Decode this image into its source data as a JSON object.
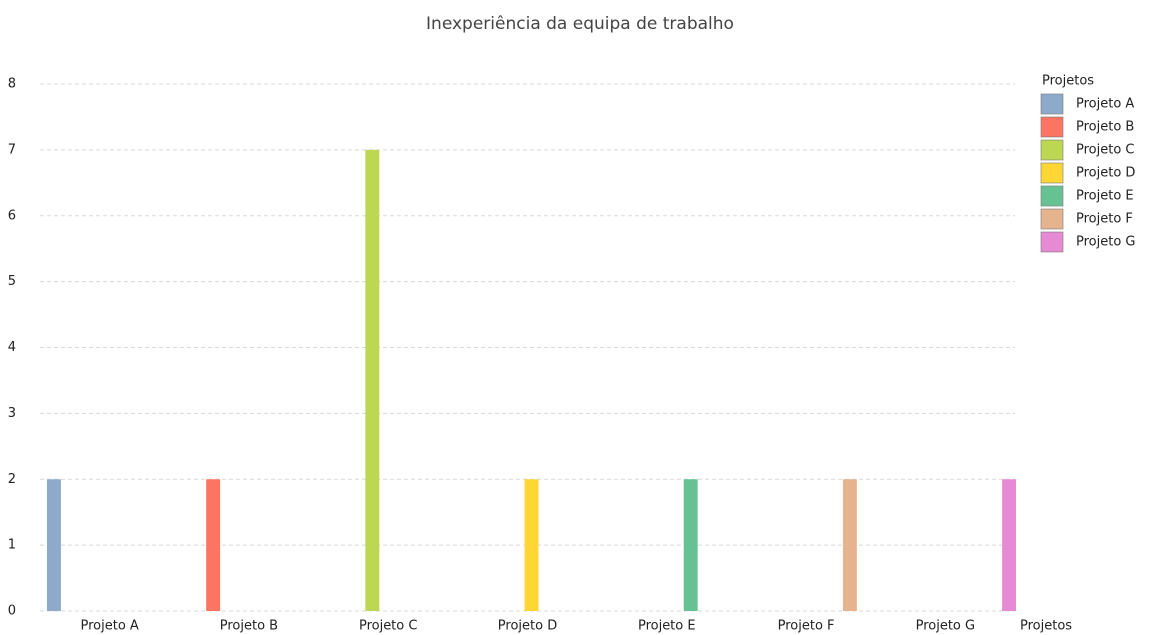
{
  "chart_data": {
    "type": "bar",
    "title": "Inexperiência da equipa de trabalho",
    "x_label": "Projetos",
    "legend_title": "Projetos",
    "categories": [
      "Projeto A",
      "Projeto B",
      "Projeto C",
      "Projeto D",
      "Projeto E",
      "Projeto F",
      "Projeto G"
    ],
    "series": [
      {
        "name": "Projeto A",
        "color": "#8eaacb",
        "values": [
          2,
          null,
          null,
          null,
          null,
          null,
          null
        ]
      },
      {
        "name": "Projeto B",
        "color": "#fc7462",
        "values": [
          null,
          2,
          null,
          null,
          null,
          null,
          null
        ]
      },
      {
        "name": "Projeto C",
        "color": "#bcd752",
        "values": [
          null,
          null,
          7,
          null,
          null,
          null,
          null
        ]
      },
      {
        "name": "Projeto D",
        "color": "#ffd633",
        "values": [
          null,
          null,
          null,
          2,
          null,
          null,
          null
        ]
      },
      {
        "name": "Projeto E",
        "color": "#66c292",
        "values": [
          null,
          null,
          null,
          null,
          2,
          null,
          null
        ]
      },
      {
        "name": "Projeto F",
        "color": "#e5b48e",
        "values": [
          null,
          null,
          null,
          null,
          null,
          2,
          null
        ]
      },
      {
        "name": "Projeto G",
        "color": "#e68ad4",
        "values": [
          null,
          null,
          null,
          null,
          null,
          null,
          2
        ]
      }
    ],
    "ylim": [
      0,
      8
    ],
    "yticks": [
      0,
      1,
      2,
      3,
      4,
      5,
      6,
      7,
      8
    ],
    "grid": true,
    "legend": "right"
  }
}
